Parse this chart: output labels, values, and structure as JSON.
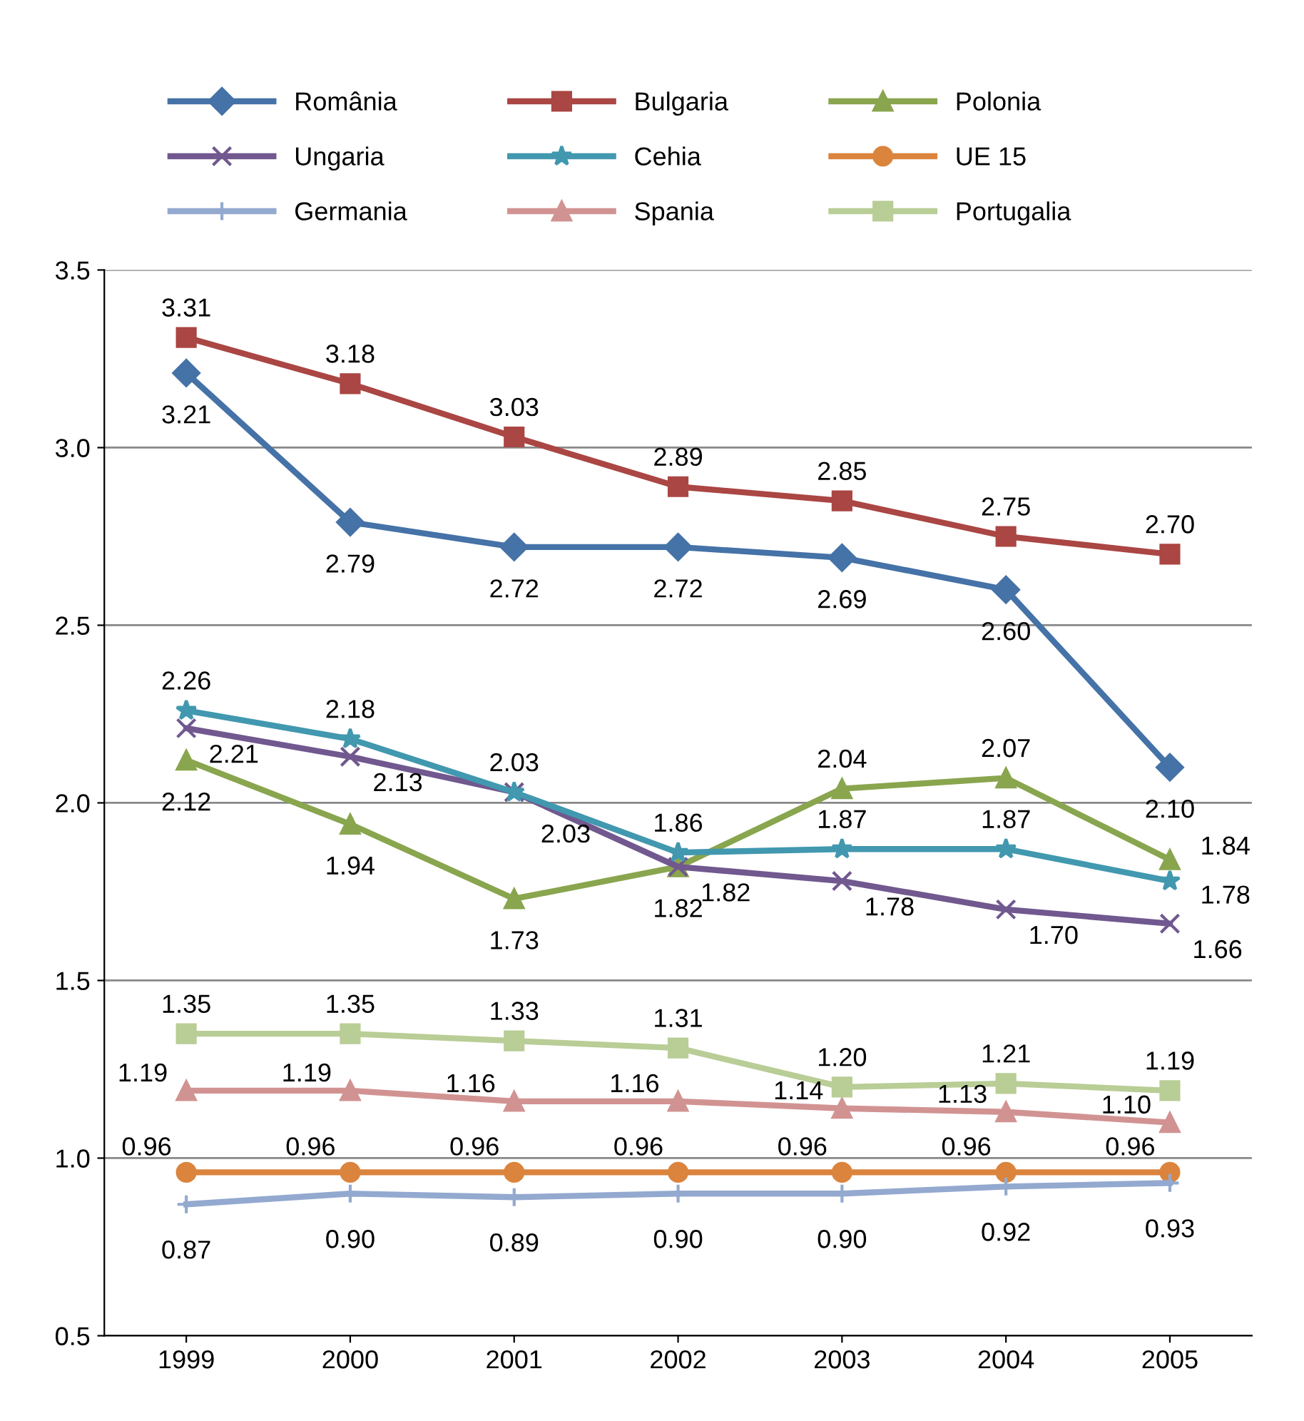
{
  "chart_data": {
    "type": "line",
    "categories": [
      "1999",
      "2000",
      "2001",
      "2002",
      "2003",
      "2004",
      "2005"
    ],
    "series": [
      {
        "name": "România",
        "color": "#4572a7",
        "marker": "diamond",
        "values": [
          3.21,
          2.79,
          2.72,
          2.72,
          2.69,
          2.6,
          2.1
        ],
        "value_labels": [
          "3.21",
          "2.79",
          "2.72",
          "2.72",
          "2.69",
          "2.60",
          "2.10"
        ]
      },
      {
        "name": "Bulgaria",
        "color": "#aa4643",
        "marker": "square",
        "values": [
          3.31,
          3.18,
          3.03,
          2.89,
          2.85,
          2.75,
          2.7
        ],
        "value_labels": [
          "3.31",
          "3.18",
          "3.03",
          "2.89",
          "2.85",
          "2.75",
          "2.70"
        ]
      },
      {
        "name": "Polonia",
        "color": "#89a54e",
        "marker": "triangle",
        "values": [
          2.12,
          1.94,
          1.73,
          1.82,
          2.04,
          2.07,
          1.84
        ],
        "value_labels": [
          "2.12",
          "1.94",
          "1.73",
          "1.82",
          "2.04",
          "2.07",
          "1.84"
        ]
      },
      {
        "name": "Ungaria",
        "color": "#71588f",
        "marker": "cross",
        "values": [
          2.21,
          2.13,
          2.03,
          1.82,
          1.78,
          1.7,
          1.66
        ],
        "value_labels": [
          "2.21",
          "2.13",
          "2.03",
          "1.82",
          "1.78",
          "1.70",
          "1.66"
        ]
      },
      {
        "name": "Cehia",
        "color": "#4198af",
        "marker": "star",
        "values": [
          2.26,
          2.18,
          2.03,
          1.86,
          1.87,
          1.87,
          1.78
        ],
        "value_labels": [
          "2.26",
          "2.18",
          "2.03",
          "1.86",
          "1.87",
          "1.87",
          "1.78"
        ]
      },
      {
        "name": "UE 15",
        "color": "#db843d",
        "marker": "circle",
        "values": [
          0.96,
          0.96,
          0.96,
          0.96,
          0.96,
          0.96,
          0.96
        ],
        "value_labels": [
          "0.96",
          "0.96",
          "0.96",
          "0.96",
          "0.96",
          "0.96",
          "0.96"
        ]
      },
      {
        "name": "Germania",
        "color": "#93a9cf",
        "marker": "plus",
        "values": [
          0.87,
          0.9,
          0.89,
          0.9,
          0.9,
          0.92,
          0.93
        ],
        "value_labels": [
          "0.87",
          "0.90",
          "0.89",
          "0.90",
          "0.90",
          "0.92",
          "0.93"
        ]
      },
      {
        "name": "Spania",
        "color": "#d19392",
        "marker": "triangle",
        "values": [
          1.19,
          1.19,
          1.16,
          1.16,
          1.14,
          1.13,
          1.1
        ],
        "value_labels": [
          "1.19",
          "1.19",
          "1.16",
          "1.16",
          "1.14",
          "1.13",
          "1.10"
        ]
      },
      {
        "name": "Portugalia",
        "color": "#b9cd96",
        "marker": "square",
        "values": [
          1.35,
          1.35,
          1.33,
          1.31,
          1.2,
          1.21,
          1.19
        ],
        "value_labels": [
          "1.35",
          "1.35",
          "1.33",
          "1.31",
          "1.20",
          "1.21",
          "1.19"
        ]
      }
    ],
    "ylim": [
      0.5,
      3.5
    ],
    "yticks": [
      0.5,
      {
        "value": 1,
        "label": "1.0"
      },
      1.5,
      {
        "value": 2,
        "label": "2.0"
      },
      2.5,
      {
        "value": 3,
        "label": "3.0"
      },
      3.5
    ],
    "grid": "y",
    "legend": "top",
    "line_style": "solid"
  }
}
